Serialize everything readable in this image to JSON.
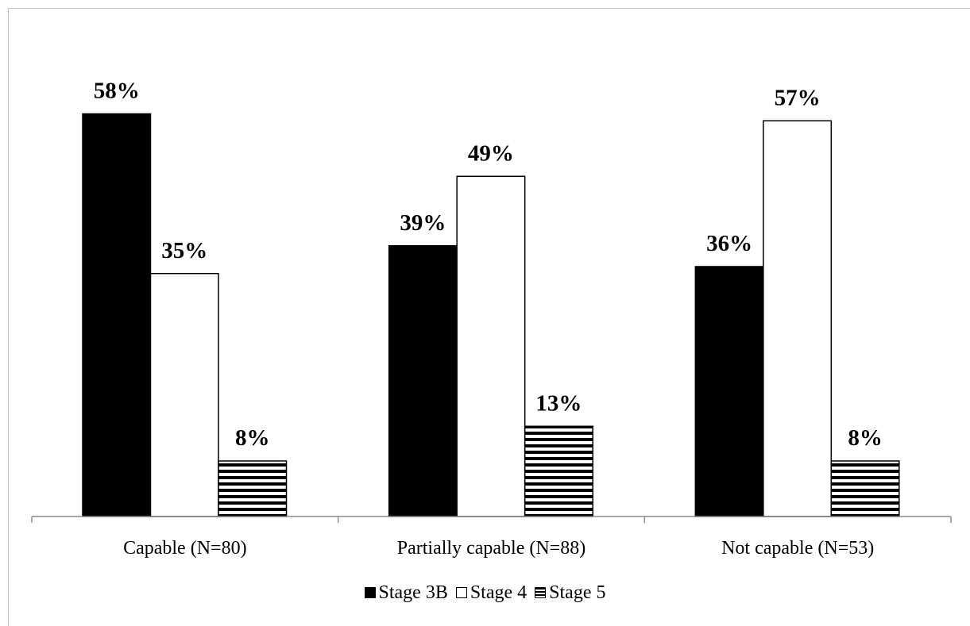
{
  "chart_data": {
    "type": "bar",
    "categories": [
      "Capable (N=80)",
      "Partially capable (N=88)",
      "Not capable (N=53)"
    ],
    "series": [
      {
        "name": "Stage 3B",
        "values": [
          58,
          39,
          36
        ],
        "labels": [
          "58%",
          "39%",
          "36%"
        ],
        "fill": "#000000",
        "pattern": "solid"
      },
      {
        "name": "Stage 4",
        "values": [
          35,
          49,
          57
        ],
        "labels": [
          "35%",
          "49%",
          "57%"
        ],
        "fill": "#ffffff",
        "pattern": "empty"
      },
      {
        "name": "Stage 5",
        "values": [
          8,
          13,
          8
        ],
        "labels": [
          "8%",
          "13%",
          "8%"
        ],
        "fill": "#000000",
        "pattern": "horizontal-stripes"
      }
    ],
    "ylim": [
      0,
      70
    ],
    "grid": false,
    "legend_position": "bottom",
    "title": "",
    "xlabel": "",
    "ylabel": ""
  }
}
